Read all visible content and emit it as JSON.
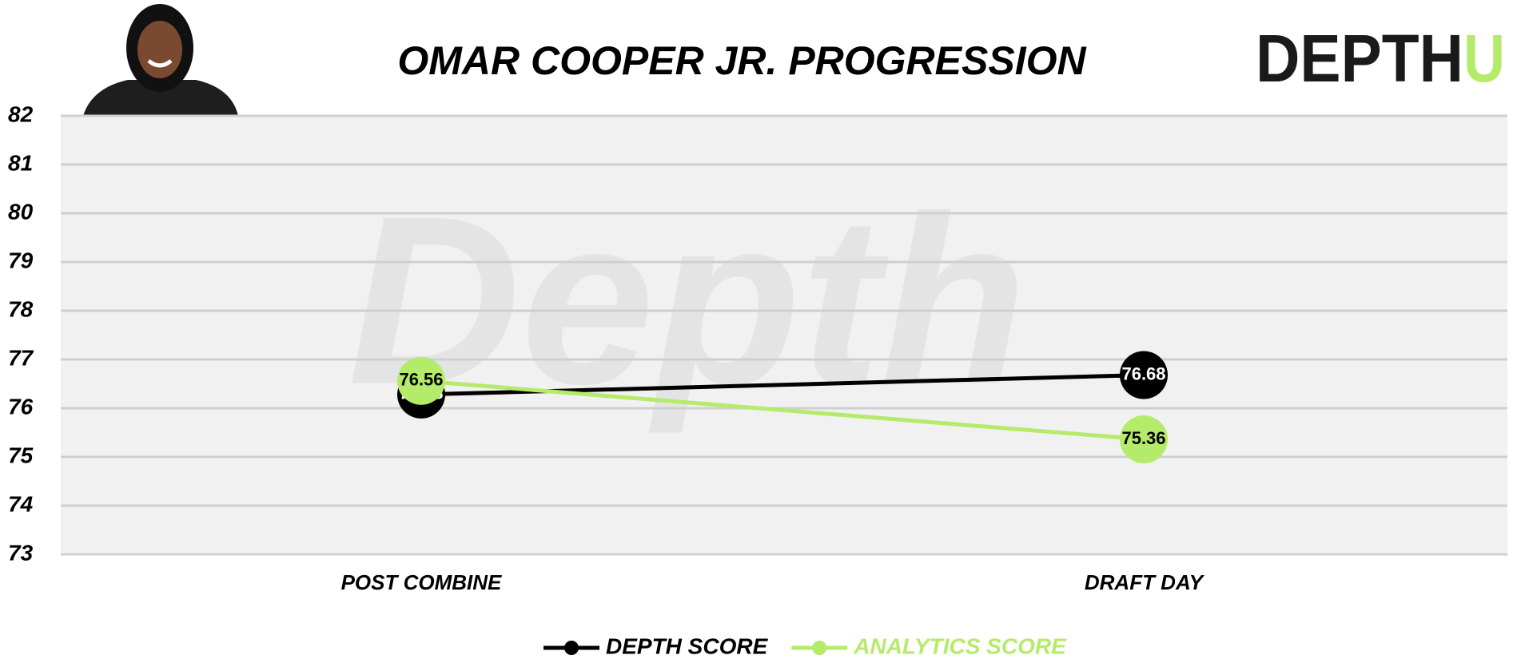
{
  "chart_data": {
    "type": "line",
    "title": "OMAR COOPER JR. PROGRESSION",
    "logo": [
      "DEPTH",
      "U"
    ],
    "watermark": "Depth",
    "categories": [
      "POST COMBINE",
      "DRAFT DAY"
    ],
    "series": [
      {
        "name": "DEPTH SCORE",
        "color": "#000000",
        "values": [
          76.28,
          76.68
        ]
      },
      {
        "name": "ANALYTICS SCORE",
        "color": "#b5eb6a",
        "values": [
          76.56,
          75.36
        ]
      }
    ],
    "ylim": [
      73,
      82
    ],
    "yticks": [
      73,
      74,
      75,
      76,
      77,
      78,
      79,
      80,
      81,
      82
    ],
    "grid": true
  }
}
